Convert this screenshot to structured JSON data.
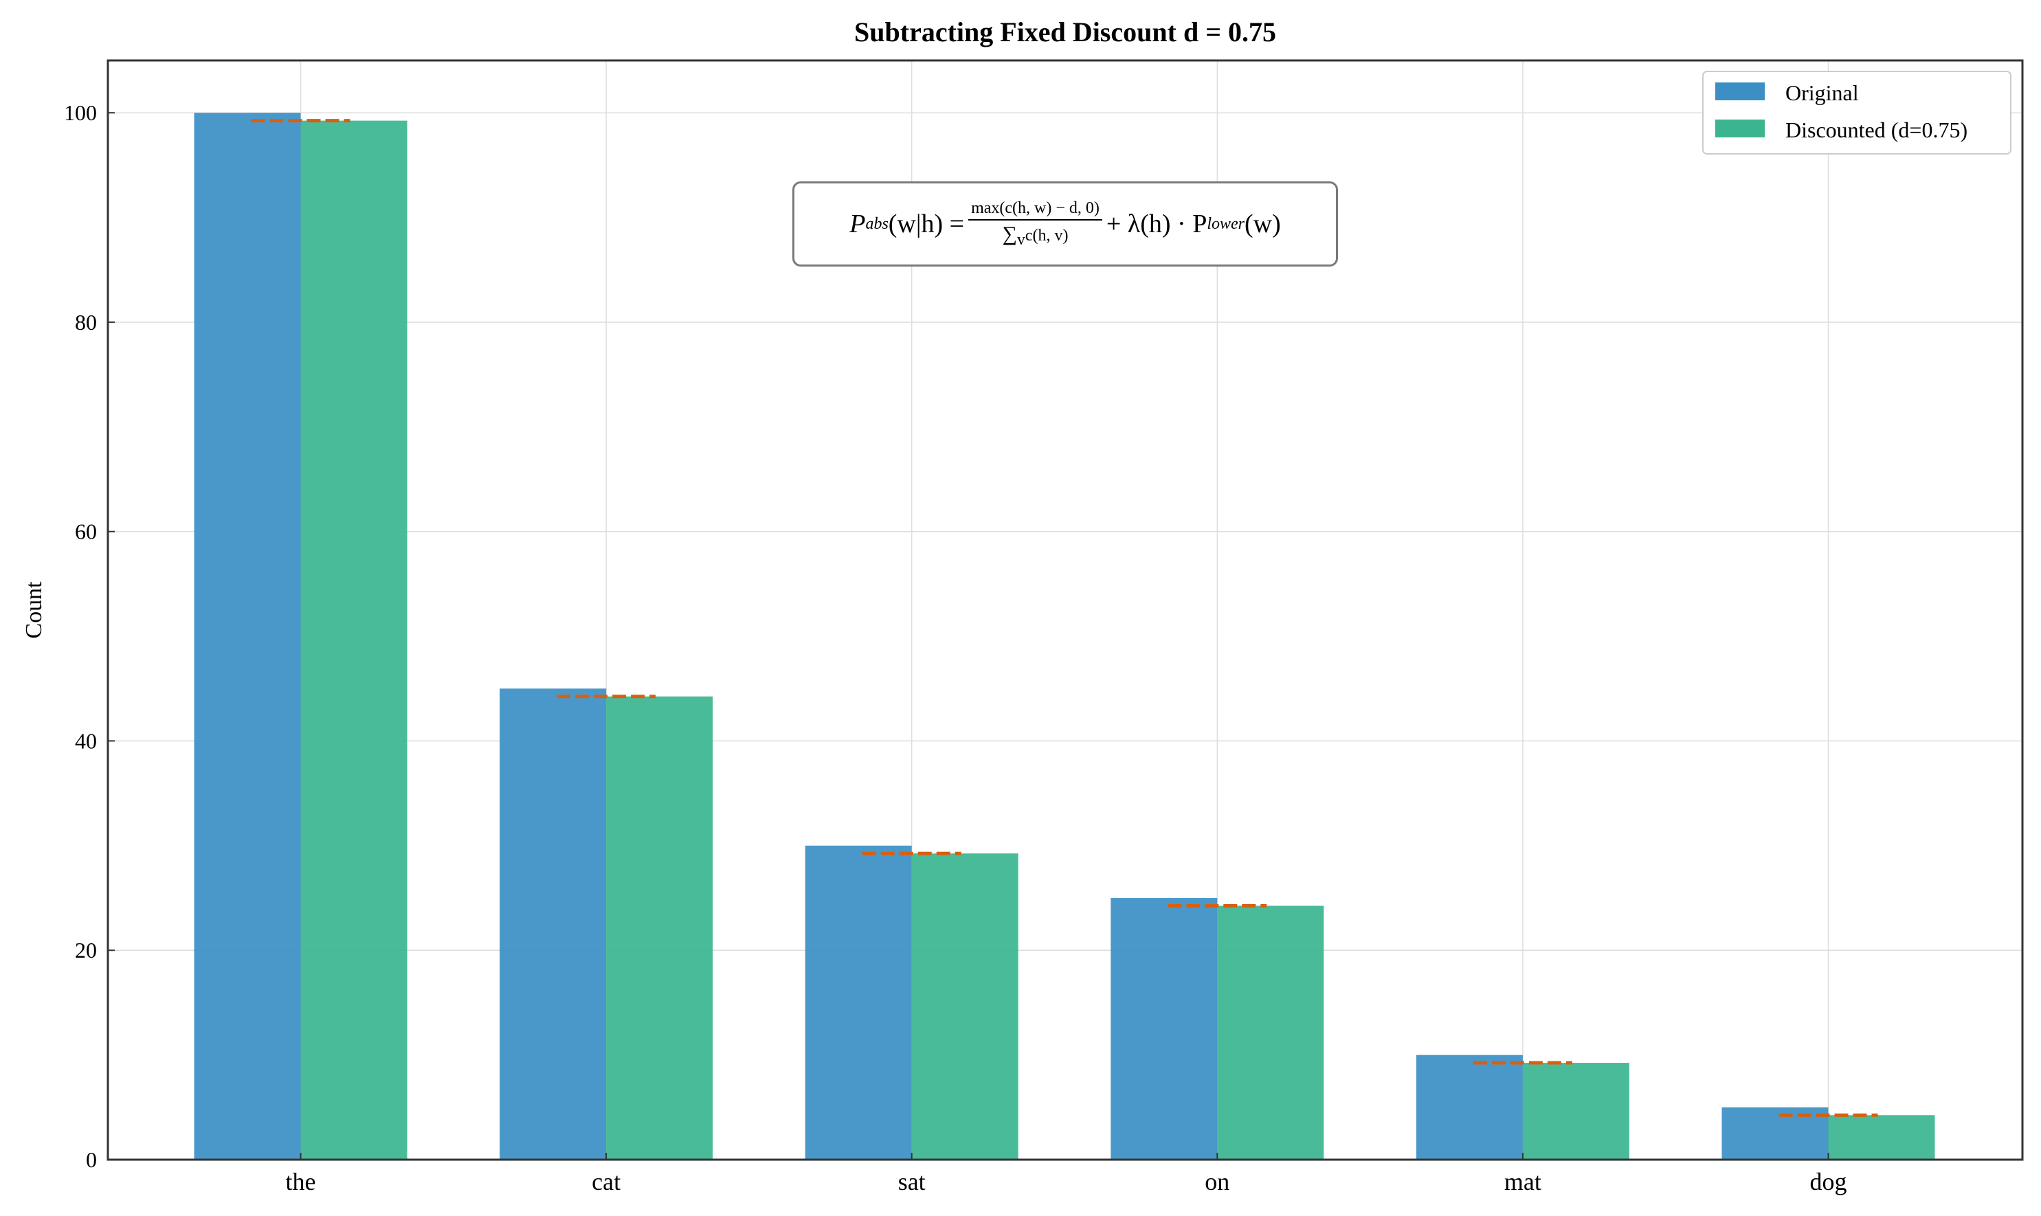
{
  "chart_data": {
    "type": "bar",
    "title": "Subtracting Fixed Discount d = 0.75",
    "xlabel": "",
    "ylabel": "Count",
    "categories": [
      "the",
      "cat",
      "sat",
      "on",
      "mat",
      "dog"
    ],
    "series": [
      {
        "name": "Original",
        "color": "#3b8fc4",
        "values": [
          100,
          45,
          30,
          25,
          10,
          5
        ]
      },
      {
        "name": "Discounted (d=0.75)",
        "color": "#3bb58f",
        "values": [
          99.25,
          44.25,
          29.25,
          24.25,
          9.25,
          4.25
        ]
      }
    ],
    "discount_marker_color": "#d95f0e",
    "ylim": [
      0,
      105
    ],
    "yticks": [
      "0",
      "20",
      "40",
      "60",
      "80",
      "100"
    ],
    "grid": true,
    "legend_position": "top-right",
    "annotation": "P_abs(w|h) = max(c(h,w) − d, 0) / Σ_v c(h,v) + λ(h)·P_lower(w)"
  },
  "formula": {
    "lhs": "P",
    "lhs_sub": "abs",
    "lhs_args": "(w|h) =",
    "numerator": "max(c(h, w) − d, 0)",
    "sum_symbol": "∑",
    "sum_index": "v",
    "denominator": "c(h, v)",
    "rhs": "+ λ(h) · P",
    "rhs_sub": "lower",
    "rhs_args": "(w)"
  }
}
